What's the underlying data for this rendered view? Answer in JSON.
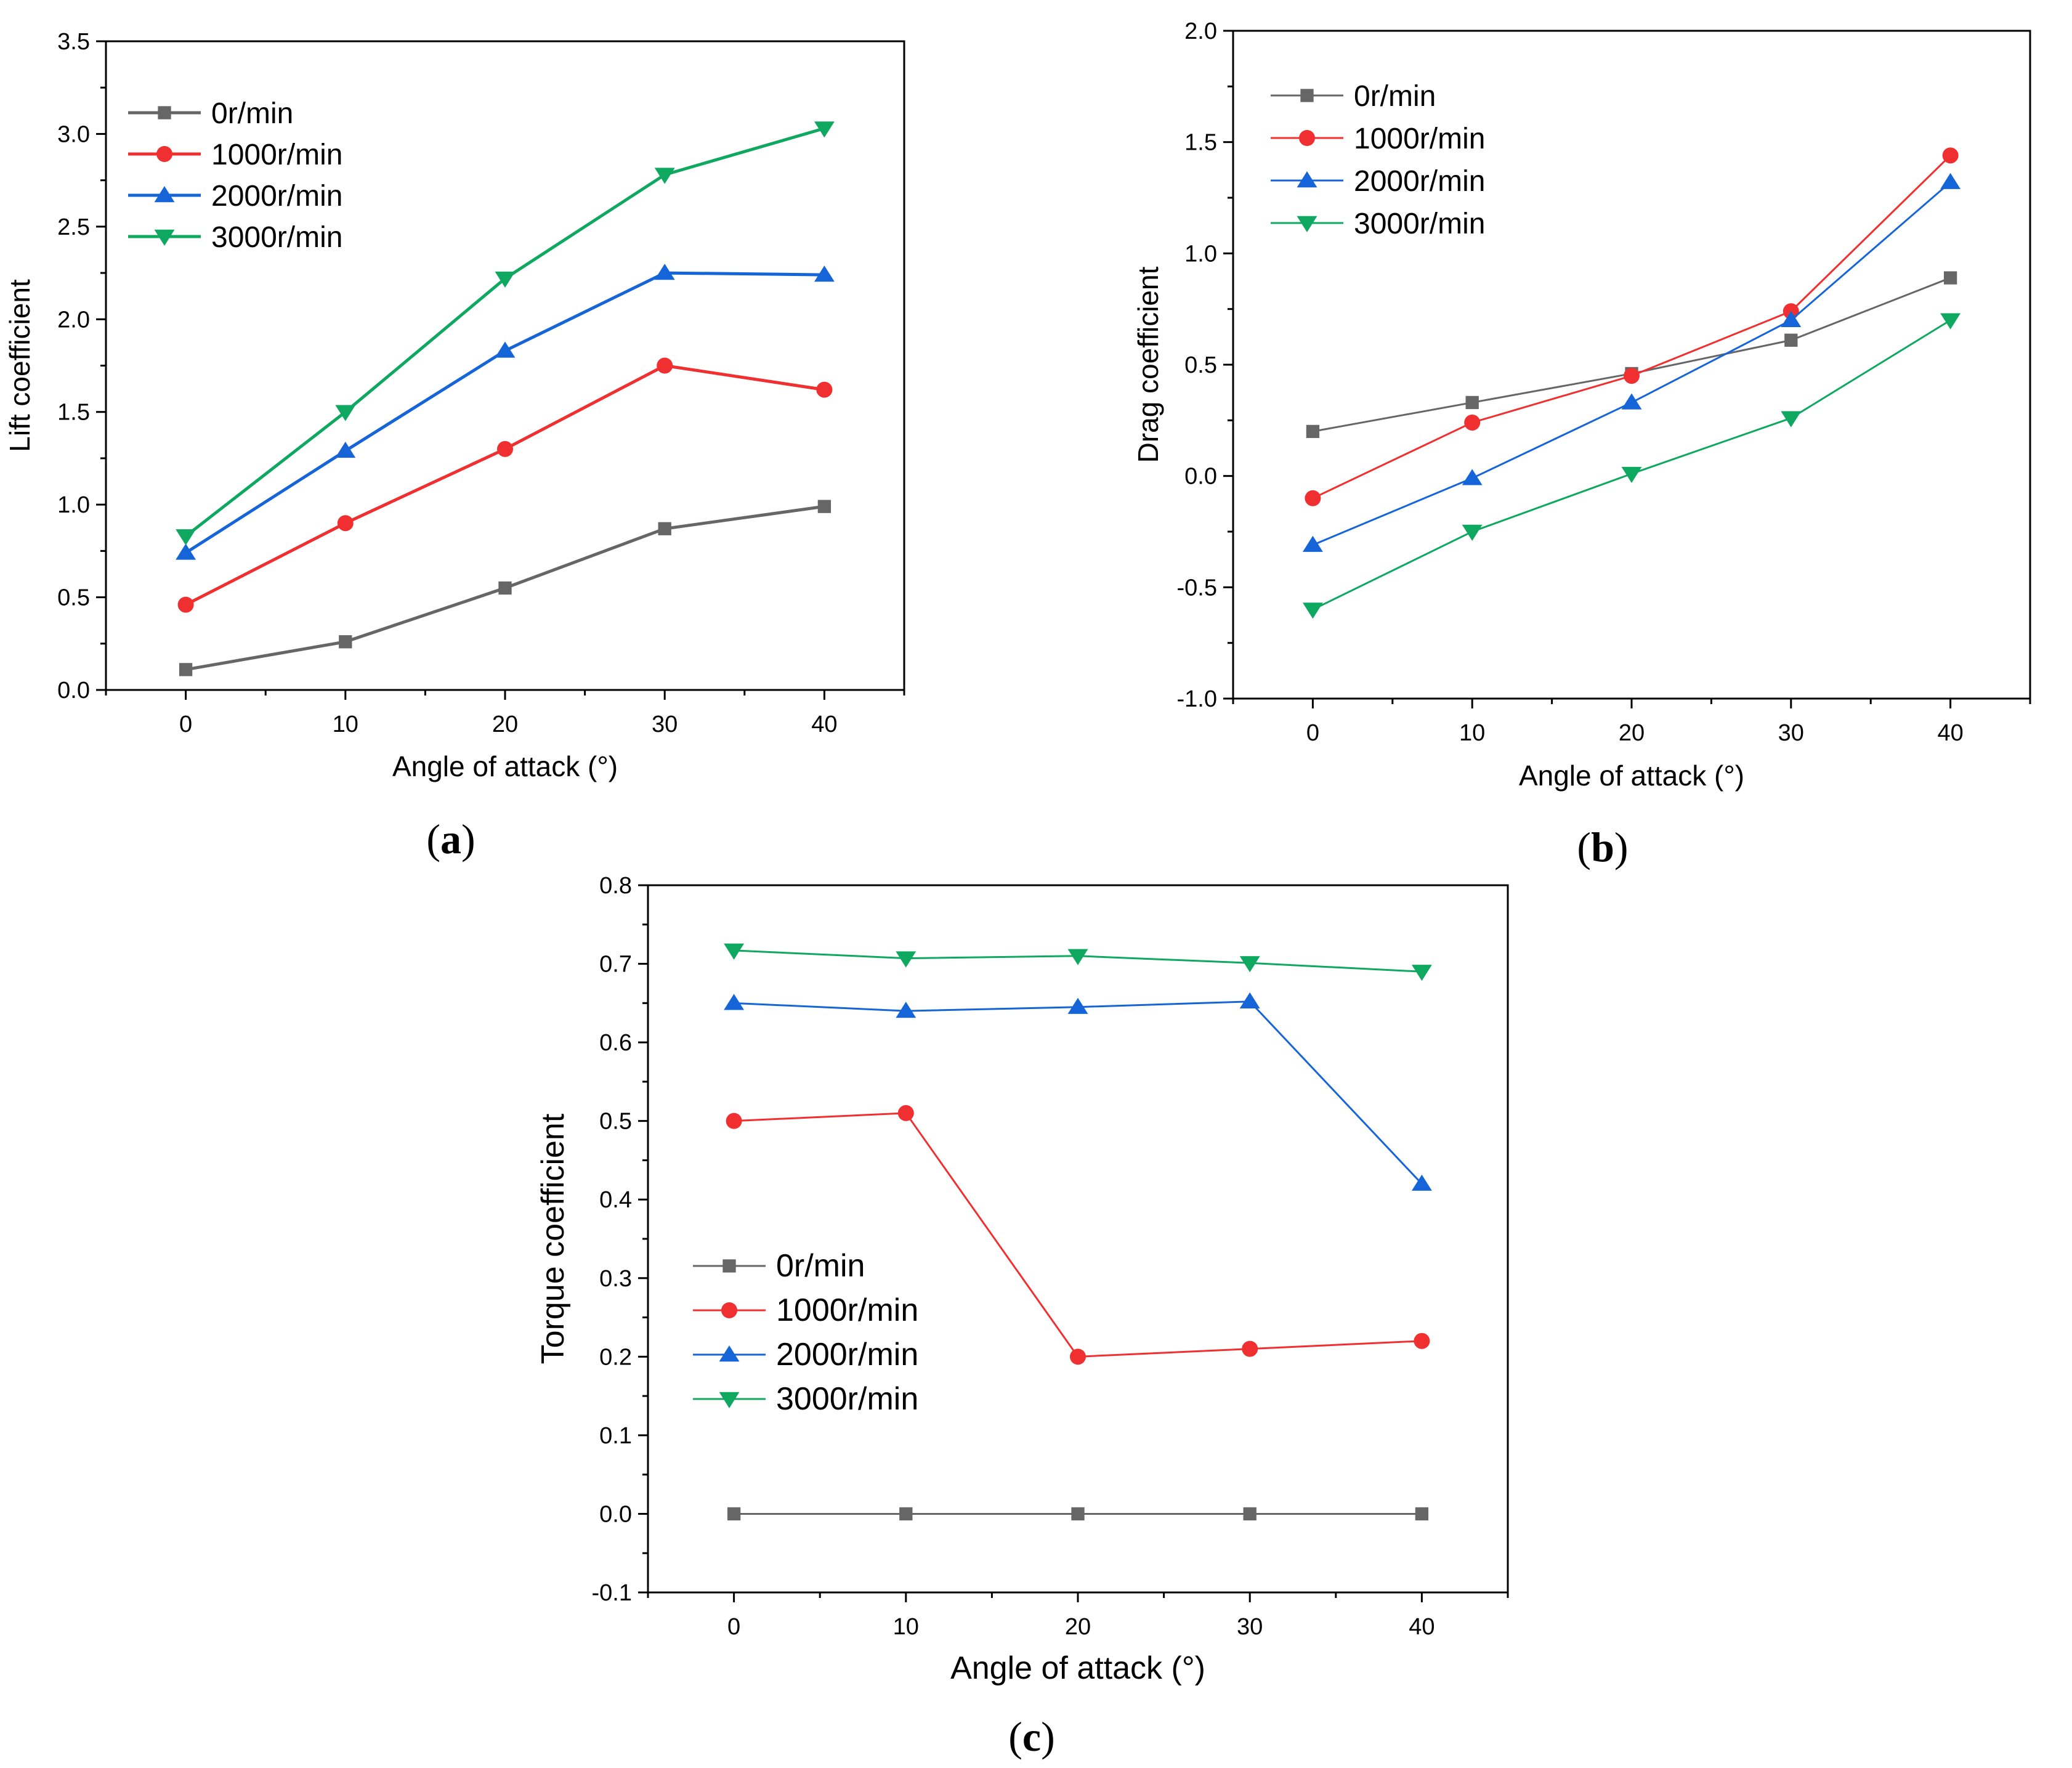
{
  "chart_data": [
    {
      "type": "line",
      "panel_label": "a",
      "xlabel": "Angle of attack (°)",
      "ylabel": "Lift coefficient",
      "x": [
        0,
        10,
        20,
        30,
        40
      ],
      "xlim": [
        -5,
        45
      ],
      "ylim": [
        0.0,
        3.5
      ],
      "xticks": [
        "0",
        "10",
        "20",
        "30",
        "40"
      ],
      "yticks": [
        "0.0",
        "0.5",
        "1.0",
        "1.5",
        "2.0",
        "2.5",
        "3.0",
        "3.5"
      ],
      "legend_position": "top-left",
      "series": [
        {
          "name": "0r/min",
          "color": "#666666",
          "marker": "square",
          "values": [
            0.11,
            0.26,
            0.55,
            0.87,
            0.99
          ]
        },
        {
          "name": "1000r/min",
          "color": "#f03030",
          "marker": "circle",
          "values": [
            0.46,
            0.9,
            1.3,
            1.75,
            1.62
          ]
        },
        {
          "name": "2000r/min",
          "color": "#1565d8",
          "marker": "triangle-up",
          "values": [
            0.74,
            1.29,
            1.83,
            2.25,
            2.24
          ]
        },
        {
          "name": "3000r/min",
          "color": "#0fa860",
          "marker": "triangle-down",
          "values": [
            0.83,
            1.5,
            2.22,
            2.78,
            3.03
          ]
        }
      ]
    },
    {
      "type": "line",
      "panel_label": "b",
      "xlabel": "Angle of attack (°)",
      "ylabel": "Drag coefficient",
      "x": [
        0,
        10,
        20,
        30,
        40
      ],
      "xlim": [
        -5,
        45
      ],
      "ylim": [
        -1.0,
        2.0
      ],
      "xticks": [
        "0",
        "10",
        "20",
        "30",
        "40"
      ],
      "yticks": [
        "-1.0",
        "-0.5",
        "0.0",
        "0.5",
        "1.0",
        "1.5",
        "2.0"
      ],
      "legend_position": "top-left",
      "series": [
        {
          "name": "0r/min",
          "color": "#666666",
          "marker": "square",
          "values": [
            0.2,
            0.33,
            0.46,
            0.61,
            0.89
          ]
        },
        {
          "name": "1000r/min",
          "color": "#f03030",
          "marker": "circle",
          "values": [
            -0.1,
            0.24,
            0.45,
            0.74,
            1.44
          ]
        },
        {
          "name": "2000r/min",
          "color": "#1565d8",
          "marker": "triangle-up",
          "values": [
            -0.31,
            -0.01,
            0.33,
            0.7,
            1.32
          ]
        },
        {
          "name": "3000r/min",
          "color": "#0fa860",
          "marker": "triangle-down",
          "values": [
            -0.6,
            -0.25,
            0.01,
            0.26,
            0.7
          ]
        }
      ]
    },
    {
      "type": "line",
      "panel_label": "c",
      "xlabel": "Angle of attack (°)",
      "ylabel": "Torque coefficient",
      "x": [
        0,
        10,
        20,
        30,
        40
      ],
      "xlim": [
        -5,
        45
      ],
      "ylim": [
        -0.1,
        0.8
      ],
      "xticks": [
        "0",
        "10",
        "20",
        "30",
        "40"
      ],
      "yticks": [
        "-0.1",
        "0.0",
        "0.1",
        "0.2",
        "0.3",
        "0.4",
        "0.5",
        "0.6",
        "0.7",
        "0.8"
      ],
      "legend_position": "lower-left",
      "series": [
        {
          "name": "0r/min",
          "color": "#666666",
          "marker": "square",
          "values": [
            0.0,
            0.0,
            0.0,
            0.0,
            0.0
          ]
        },
        {
          "name": "1000r/min",
          "color": "#f03030",
          "marker": "circle",
          "values": [
            0.5,
            0.51,
            0.2,
            0.21,
            0.22
          ]
        },
        {
          "name": "2000r/min",
          "color": "#1565d8",
          "marker": "triangle-up",
          "values": [
            0.65,
            0.64,
            0.645,
            0.652,
            0.42
          ]
        },
        {
          "name": "3000r/min",
          "color": "#0fa860",
          "marker": "triangle-down",
          "values": [
            0.717,
            0.707,
            0.71,
            0.701,
            0.69
          ]
        }
      ]
    }
  ]
}
